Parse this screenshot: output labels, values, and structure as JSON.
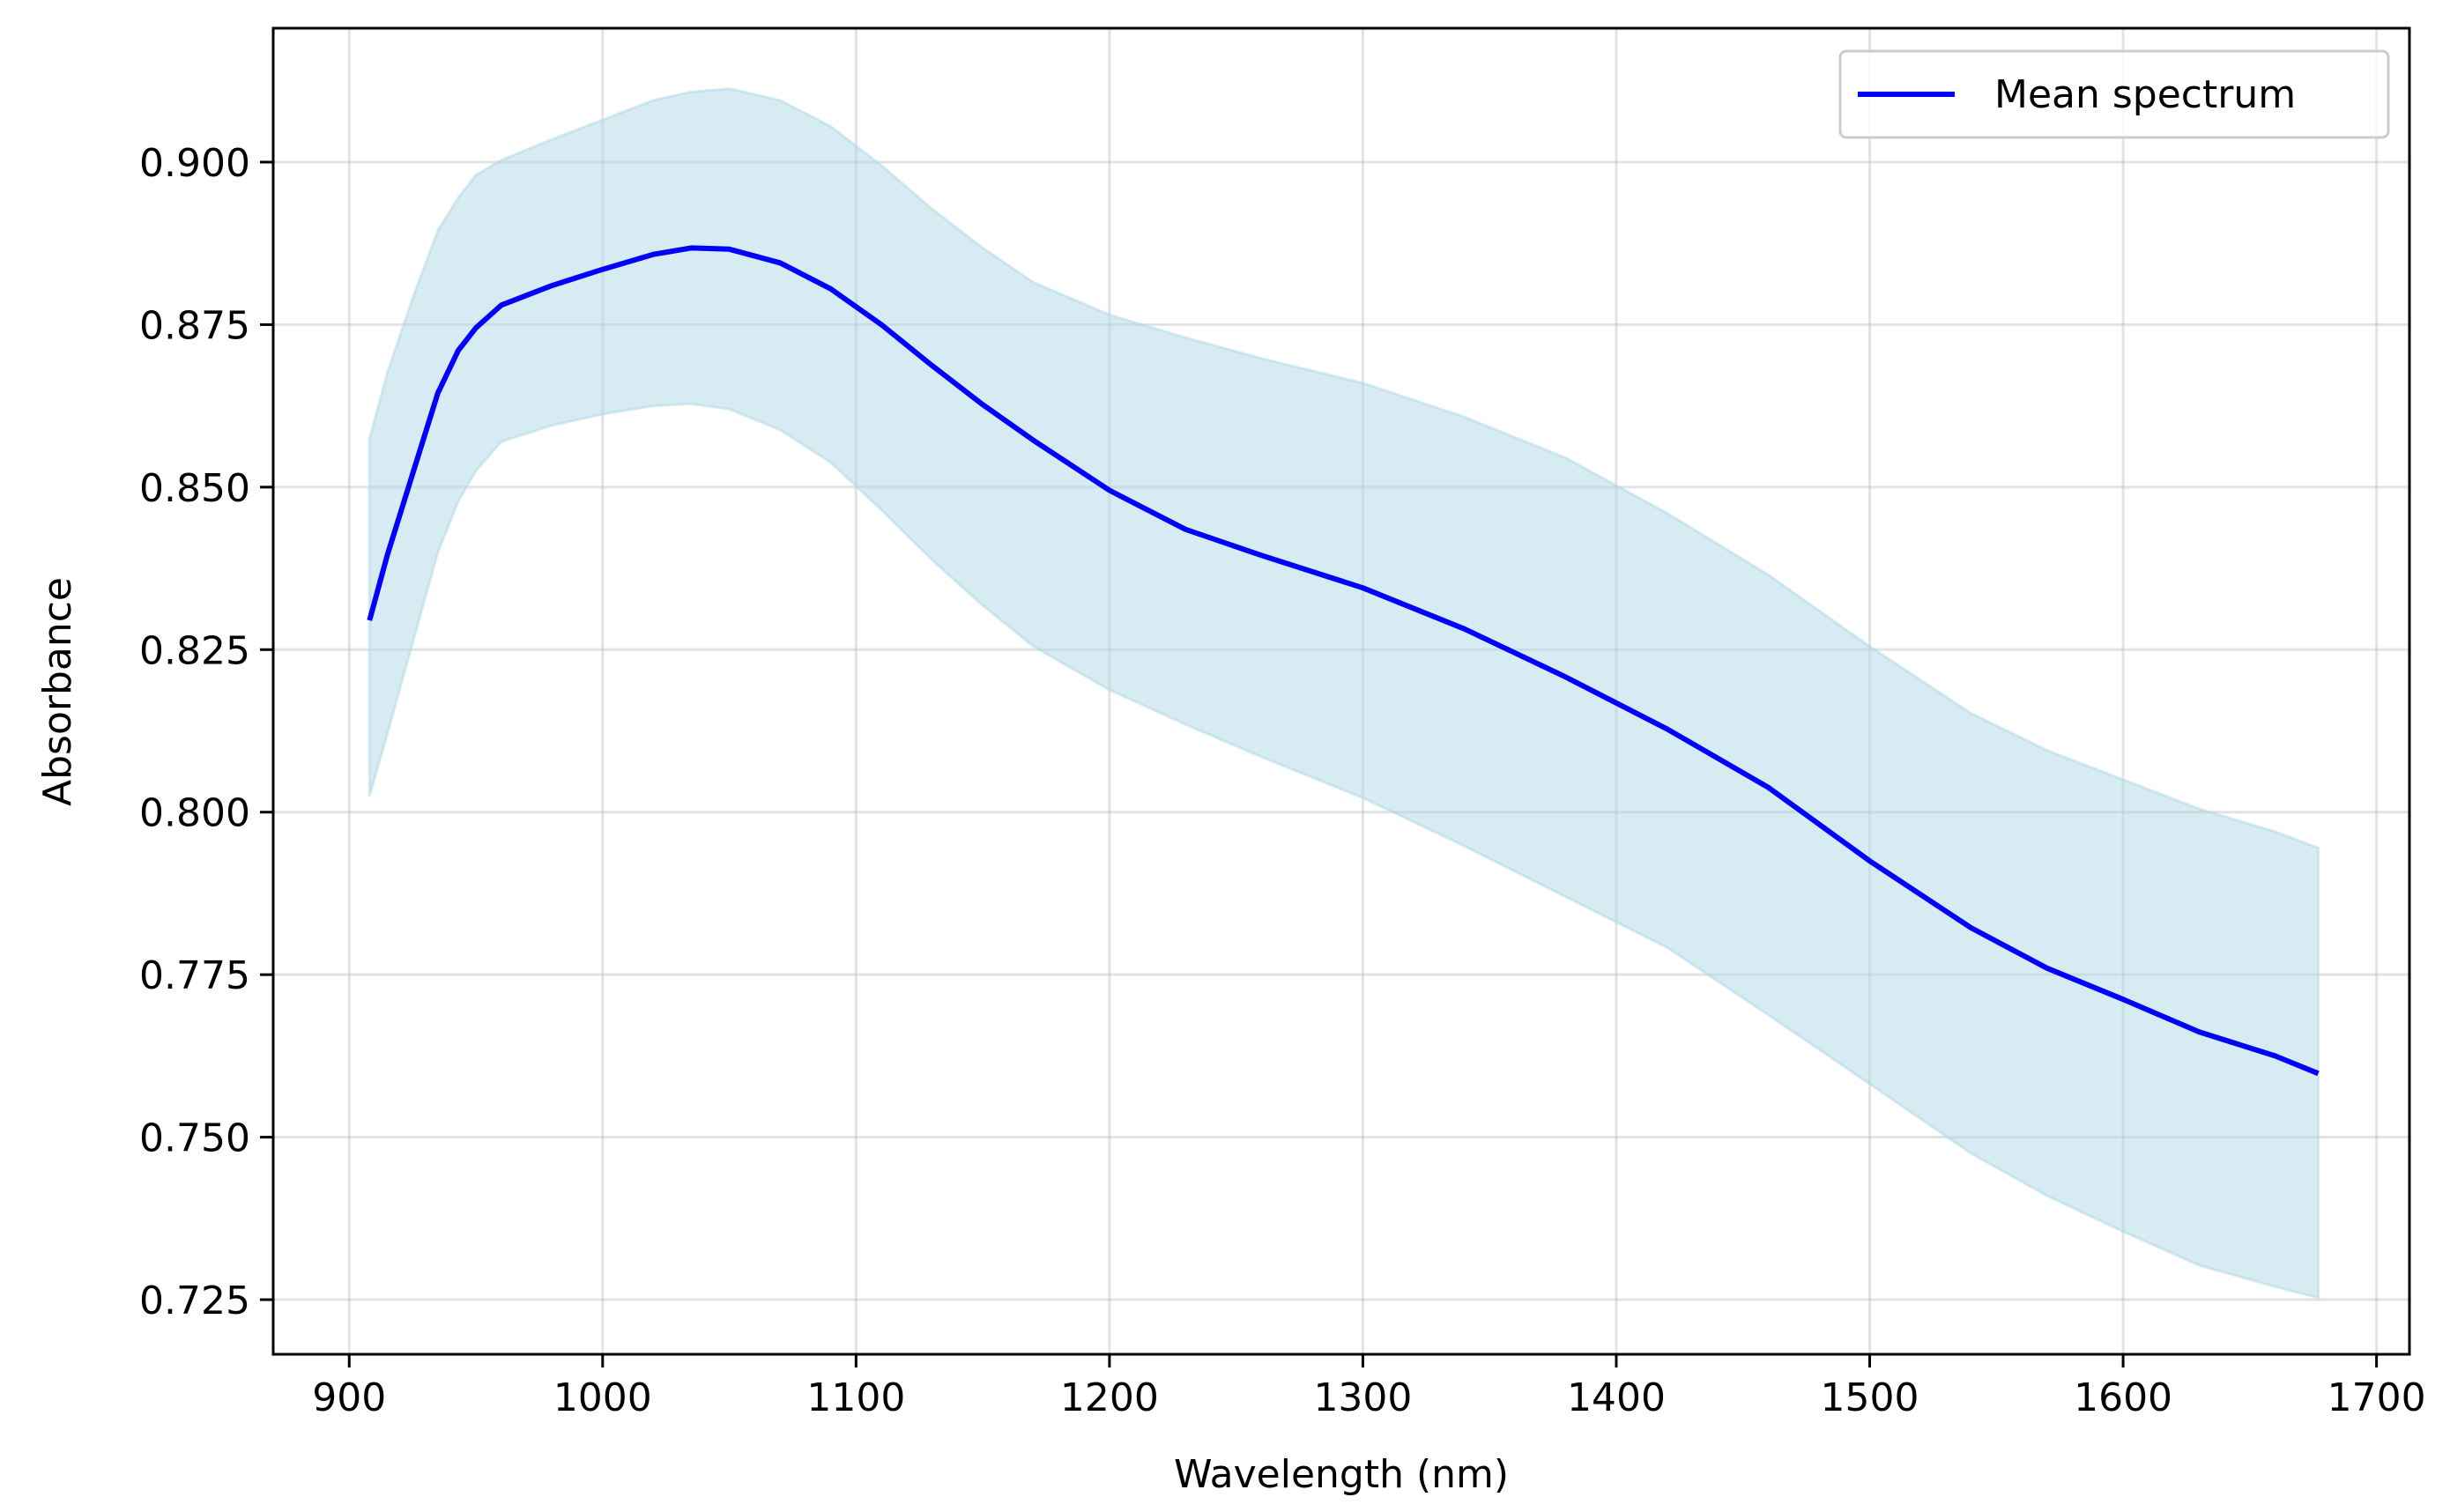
{
  "chart_data": {
    "type": "line",
    "title": "",
    "xlabel": "Wavelength (nm)",
    "ylabel": "Absorbance",
    "xlim": [
      870,
      1713
    ],
    "ylim": [
      0.7166,
      0.9206
    ],
    "xticks": [
      900,
      1000,
      1100,
      1200,
      1300,
      1400,
      1500,
      1600,
      1700
    ],
    "xtick_labels": [
      "900",
      "1000",
      "1100",
      "1200",
      "1300",
      "1400",
      "1500",
      "1600",
      "1700"
    ],
    "yticks": [
      0.725,
      0.75,
      0.775,
      0.8,
      0.825,
      0.85,
      0.875,
      0.9
    ],
    "ytick_labels": [
      "0.725",
      "0.750",
      "0.775",
      "0.800",
      "0.825",
      "0.850",
      "0.875",
      "0.900"
    ],
    "grid": true,
    "legend_position": "top-right",
    "colors": {
      "mean": "#0000ff",
      "band": "#add8e6"
    },
    "series": [
      {
        "name": "Mean spectrum",
        "x": [
          908,
          915,
          925,
          935,
          943,
          950,
          960,
          980,
          1000,
          1020,
          1035,
          1050,
          1070,
          1090,
          1110,
          1130,
          1150,
          1170,
          1200,
          1230,
          1260,
          1300,
          1340,
          1380,
          1420,
          1460,
          1500,
          1540,
          1570,
          1600,
          1630,
          1660,
          1677
        ],
        "y": [
          0.8295,
          0.8395,
          0.852,
          0.8645,
          0.871,
          0.8745,
          0.878,
          0.881,
          0.8835,
          0.8858,
          0.8868,
          0.8866,
          0.8845,
          0.8805,
          0.875,
          0.8687,
          0.8627,
          0.8572,
          0.8495,
          0.8435,
          0.8395,
          0.8345,
          0.8282,
          0.8208,
          0.8128,
          0.8038,
          0.7925,
          0.7822,
          0.776,
          0.7712,
          0.7662,
          0.7625,
          0.7598
        ]
      },
      {
        "name": "",
        "type": "band",
        "x": [
          908,
          915,
          925,
          935,
          943,
          950,
          960,
          980,
          1000,
          1020,
          1035,
          1050,
          1070,
          1090,
          1110,
          1130,
          1150,
          1170,
          1200,
          1230,
          1260,
          1300,
          1340,
          1380,
          1420,
          1460,
          1500,
          1540,
          1570,
          1600,
          1630,
          1660,
          1677
        ],
        "y_upper": [
          0.8575,
          0.8675,
          0.879,
          0.8895,
          0.8945,
          0.898,
          0.9003,
          0.9035,
          0.9065,
          0.9095,
          0.9108,
          0.9113,
          0.9095,
          0.9055,
          0.8995,
          0.8928,
          0.8868,
          0.8815,
          0.8765,
          0.873,
          0.8698,
          0.866,
          0.8608,
          0.8545,
          0.846,
          0.8365,
          0.8255,
          0.8152,
          0.8095,
          0.805,
          0.8005,
          0.797,
          0.7945
        ],
        "y_lower": [
          0.8025,
          0.812,
          0.826,
          0.84,
          0.8478,
          0.8525,
          0.857,
          0.8595,
          0.8612,
          0.8625,
          0.8628,
          0.862,
          0.8588,
          0.8538,
          0.8465,
          0.8388,
          0.8318,
          0.8255,
          0.8188,
          0.8135,
          0.8085,
          0.8022,
          0.7948,
          0.787,
          0.7792,
          0.7688,
          0.7582,
          0.7475,
          0.741,
          0.7355,
          0.7303,
          0.727,
          0.7253
        ]
      }
    ]
  }
}
